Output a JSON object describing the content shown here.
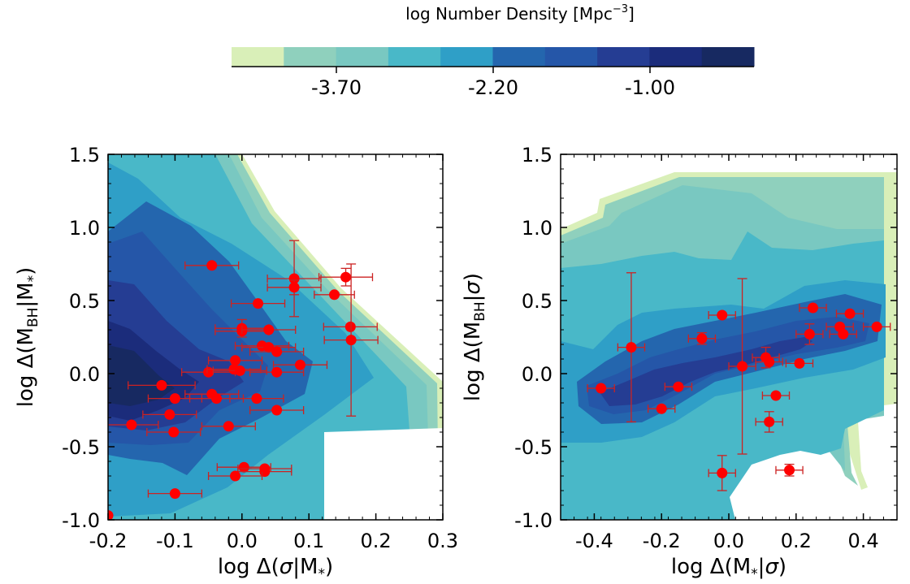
{
  "colorbar": {
    "title": "log Number Density [Mpc$^{-3}$]",
    "title_main": "log Number Density [Mpc",
    "title_sup": "−3",
    "title_close": "]",
    "tick_labels": [
      "-3.70",
      "-2.20",
      "-1.00"
    ],
    "colors": [
      "#d9efb8",
      "#8fd0bd",
      "#79c8c1",
      "#49b8c8",
      "#2f9fc7",
      "#2466ae",
      "#2556a8",
      "#253d93",
      "#1b2c7b",
      "#172961"
    ]
  },
  "chart_data": [
    {
      "type": "scatter",
      "panel": "left",
      "xlabel": "log Δ(σ|M*)",
      "xlabel_parts": {
        "pre": "log Δ(",
        "sigma": "σ",
        "mid": "|M",
        "sub": "*",
        "post": ")"
      },
      "ylabel": "log Δ(MBH|M*)",
      "ylabel_parts": {
        "pre": "log Δ(M",
        "sub1": "BH",
        "mid": "|M",
        "sub2": "*",
        "post": ")"
      },
      "xlim": [
        -0.2,
        0.3
      ],
      "ylim": [
        -1.0,
        1.5
      ],
      "xticks": [
        -0.2,
        -0.1,
        0.0,
        0.1,
        0.2,
        0.3
      ],
      "xtick_labels": [
        "-0.2",
        "-0.1",
        "0.0",
        "0.1",
        "0.2",
        "0.3"
      ],
      "yticks": [
        -1.0,
        -0.5,
        0.0,
        0.5,
        1.0,
        1.5
      ],
      "ytick_labels": [
        "-1.0",
        "-0.5",
        "0.0",
        "0.5",
        "1.0",
        "1.5"
      ],
      "point_color": "#ff0000",
      "errorbar_color": "#cc2222",
      "points": [
        {
          "x": -0.045,
          "y": 0.74,
          "xerr": 0.04,
          "yerr": 0.0
        },
        {
          "x": 0.078,
          "y": 0.65,
          "xerr": 0.04,
          "yerr": 0.26
        },
        {
          "x": 0.078,
          "y": 0.59,
          "xerr": 0.04,
          "yerr": 0.05
        },
        {
          "x": 0.155,
          "y": 0.66,
          "xerr": 0.04,
          "yerr": 0.06
        },
        {
          "x": 0.138,
          "y": 0.54,
          "xerr": 0.03,
          "yerr": 0.0
        },
        {
          "x": 0.024,
          "y": 0.48,
          "xerr": 0.04,
          "yerr": 0.0
        },
        {
          "x": 0.0,
          "y": 0.31,
          "xerr": 0.04,
          "yerr": 0.06
        },
        {
          "x": 0.0,
          "y": 0.29,
          "xerr": 0.04,
          "yerr": 0.0
        },
        {
          "x": 0.04,
          "y": 0.3,
          "xerr": 0.04,
          "yerr": 0.0
        },
        {
          "x": 0.162,
          "y": 0.32,
          "xerr": 0.04,
          "yerr": 0.0
        },
        {
          "x": 0.163,
          "y": 0.23,
          "xerr": 0.04,
          "yerr": 0.52
        },
        {
          "x": 0.03,
          "y": 0.19,
          "xerr": 0.04,
          "yerr": 0.0
        },
        {
          "x": 0.04,
          "y": 0.18,
          "xerr": 0.04,
          "yerr": 0.0
        },
        {
          "x": 0.052,
          "y": 0.15,
          "xerr": 0.04,
          "yerr": 0.0
        },
        {
          "x": -0.01,
          "y": 0.09,
          "xerr": 0.04,
          "yerr": 0.0
        },
        {
          "x": 0.087,
          "y": 0.06,
          "xerr": 0.04,
          "yerr": 0.0
        },
        {
          "x": -0.05,
          "y": 0.01,
          "xerr": 0.04,
          "yerr": 0.0
        },
        {
          "x": -0.012,
          "y": 0.03,
          "xerr": 0.04,
          "yerr": 0.0
        },
        {
          "x": -0.003,
          "y": 0.02,
          "xerr": 0.04,
          "yerr": 0.0
        },
        {
          "x": 0.052,
          "y": 0.01,
          "xerr": 0.04,
          "yerr": 0.0
        },
        {
          "x": -0.12,
          "y": -0.08,
          "xerr": 0.05,
          "yerr": 0.0
        },
        {
          "x": -0.045,
          "y": -0.14,
          "xerr": 0.04,
          "yerr": 0.0
        },
        {
          "x": -0.038,
          "y": -0.17,
          "xerr": 0.04,
          "yerr": 0.0
        },
        {
          "x": -0.1,
          "y": -0.17,
          "xerr": 0.04,
          "yerr": 0.0
        },
        {
          "x": 0.022,
          "y": -0.17,
          "xerr": 0.04,
          "yerr": 0.0
        },
        {
          "x": 0.052,
          "y": -0.25,
          "xerr": 0.04,
          "yerr": 0.0
        },
        {
          "x": -0.108,
          "y": -0.28,
          "xerr": 0.04,
          "yerr": 0.0
        },
        {
          "x": -0.165,
          "y": -0.35,
          "xerr": 0.04,
          "yerr": 0.0
        },
        {
          "x": -0.02,
          "y": -0.36,
          "xerr": 0.04,
          "yerr": 0.0
        },
        {
          "x": -0.102,
          "y": -0.4,
          "xerr": 0.04,
          "yerr": 0.0
        },
        {
          "x": 0.003,
          "y": -0.64,
          "xerr": 0.04,
          "yerr": 0.0
        },
        {
          "x": 0.034,
          "y": -0.65,
          "xerr": 0.04,
          "yerr": 0.0
        },
        {
          "x": 0.034,
          "y": -0.67,
          "xerr": 0.04,
          "yerr": 0.0
        },
        {
          "x": -0.01,
          "y": -0.7,
          "xerr": 0.04,
          "yerr": 0.0
        },
        {
          "x": -0.1,
          "y": -0.82,
          "xerr": 0.04,
          "yerr": 0.0
        },
        {
          "x": -0.2,
          "y": -0.97,
          "xerr": 0.0,
          "yerr": 0.0
        }
      ]
    },
    {
      "type": "scatter",
      "panel": "right",
      "xlabel": "log Δ(M*|σ)",
      "xlabel_parts": {
        "pre": "log Δ(M",
        "sub": "*",
        "mid": "|",
        "sigma": "σ",
        "post": ")"
      },
      "ylabel": "log Δ(MBH|σ)",
      "ylabel_parts": {
        "pre": "log Δ(M",
        "sub1": "BH",
        "mid": "|",
        "sigma": "σ",
        "post": ")"
      },
      "xlim": [
        -0.5,
        0.5
      ],
      "ylim": [
        -1.0,
        1.5
      ],
      "xticks": [
        -0.4,
        -0.2,
        0.0,
        0.2,
        0.4
      ],
      "xtick_labels": [
        "-0.4",
        "-0.2",
        "0.0",
        "0.2",
        "0.4"
      ],
      "yticks": [
        -1.0,
        -0.5,
        0.0,
        0.5,
        1.0,
        1.5
      ],
      "ytick_labels": [
        "-1.0",
        "-0.5",
        "0.0",
        "0.5",
        "1.0",
        "1.5"
      ],
      "point_color": "#ff0000",
      "errorbar_color": "#cc2222",
      "points": [
        {
          "x": -0.29,
          "y": 0.18,
          "xerr": 0.04,
          "yerr": 0.51
        },
        {
          "x": -0.02,
          "y": 0.4,
          "xerr": 0.04,
          "yerr": 0.0
        },
        {
          "x": -0.08,
          "y": 0.24,
          "xerr": 0.04,
          "yerr": 0.04
        },
        {
          "x": 0.25,
          "y": 0.45,
          "xerr": 0.04,
          "yerr": 0.0
        },
        {
          "x": 0.36,
          "y": 0.41,
          "xerr": 0.04,
          "yerr": 0.0
        },
        {
          "x": 0.33,
          "y": 0.32,
          "xerr": 0.04,
          "yerr": 0.0
        },
        {
          "x": 0.44,
          "y": 0.32,
          "xerr": 0.04,
          "yerr": 0.0
        },
        {
          "x": 0.34,
          "y": 0.27,
          "xerr": 0.04,
          "yerr": 0.0
        },
        {
          "x": 0.24,
          "y": 0.27,
          "xerr": 0.04,
          "yerr": 0.07
        },
        {
          "x": 0.11,
          "y": 0.11,
          "xerr": 0.04,
          "yerr": 0.07
        },
        {
          "x": 0.12,
          "y": 0.08,
          "xerr": 0.04,
          "yerr": 0.0
        },
        {
          "x": 0.21,
          "y": 0.07,
          "xerr": 0.04,
          "yerr": 0.0
        },
        {
          "x": 0.04,
          "y": 0.05,
          "xerr": 0.04,
          "yerr": 0.6
        },
        {
          "x": -0.38,
          "y": -0.1,
          "xerr": 0.04,
          "yerr": 0.0
        },
        {
          "x": -0.15,
          "y": -0.09,
          "xerr": 0.04,
          "yerr": 0.0
        },
        {
          "x": 0.14,
          "y": -0.15,
          "xerr": 0.04,
          "yerr": 0.0
        },
        {
          "x": -0.2,
          "y": -0.24,
          "xerr": 0.04,
          "yerr": 0.0
        },
        {
          "x": 0.12,
          "y": -0.33,
          "xerr": 0.04,
          "yerr": 0.07
        },
        {
          "x": -0.02,
          "y": -0.68,
          "xerr": 0.04,
          "yerr": 0.12
        },
        {
          "x": 0.18,
          "y": -0.66,
          "xerr": 0.04,
          "yerr": 0.04
        }
      ]
    }
  ]
}
